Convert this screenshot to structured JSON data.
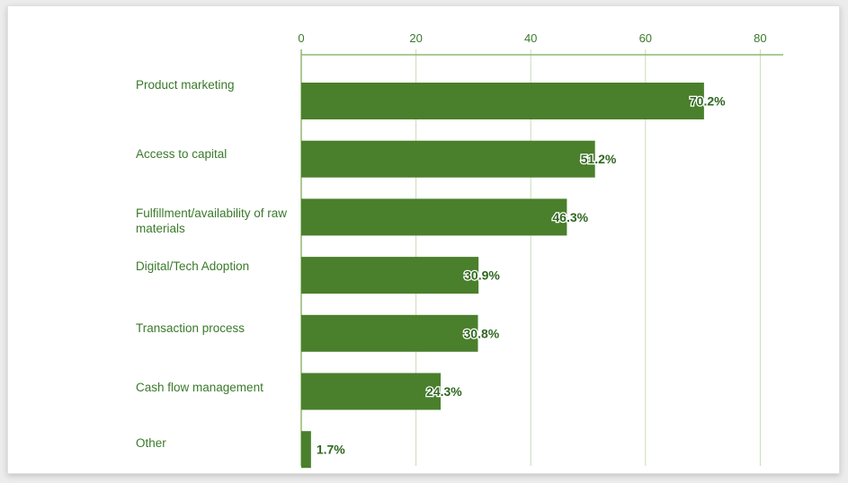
{
  "chart_data": {
    "type": "bar",
    "orientation": "horizontal",
    "categories": [
      "Product marketing",
      "Access to capital",
      "Fulfillment/availability of raw materials",
      "Digital/Tech Adoption",
      "Transaction process",
      "Cash flow management",
      "Other"
    ],
    "values": [
      70.2,
      51.2,
      46.3,
      30.9,
      30.8,
      24.3,
      1.7
    ],
    "value_labels": [
      "70.2%",
      "51.2%",
      "46.3%",
      "30.9%",
      "30.8%",
      "24.3%",
      "1.7%"
    ],
    "x_ticks": [
      "0",
      "20",
      "40",
      "60",
      "80"
    ],
    "xlim": [
      0,
      84
    ],
    "axis_position": "top",
    "grid": true,
    "title": "",
    "xlabel": "",
    "ylabel": "",
    "bar_color": "#4a7f2c",
    "grid_color": "#c9ddb8",
    "axis_color": "#8fb870"
  }
}
